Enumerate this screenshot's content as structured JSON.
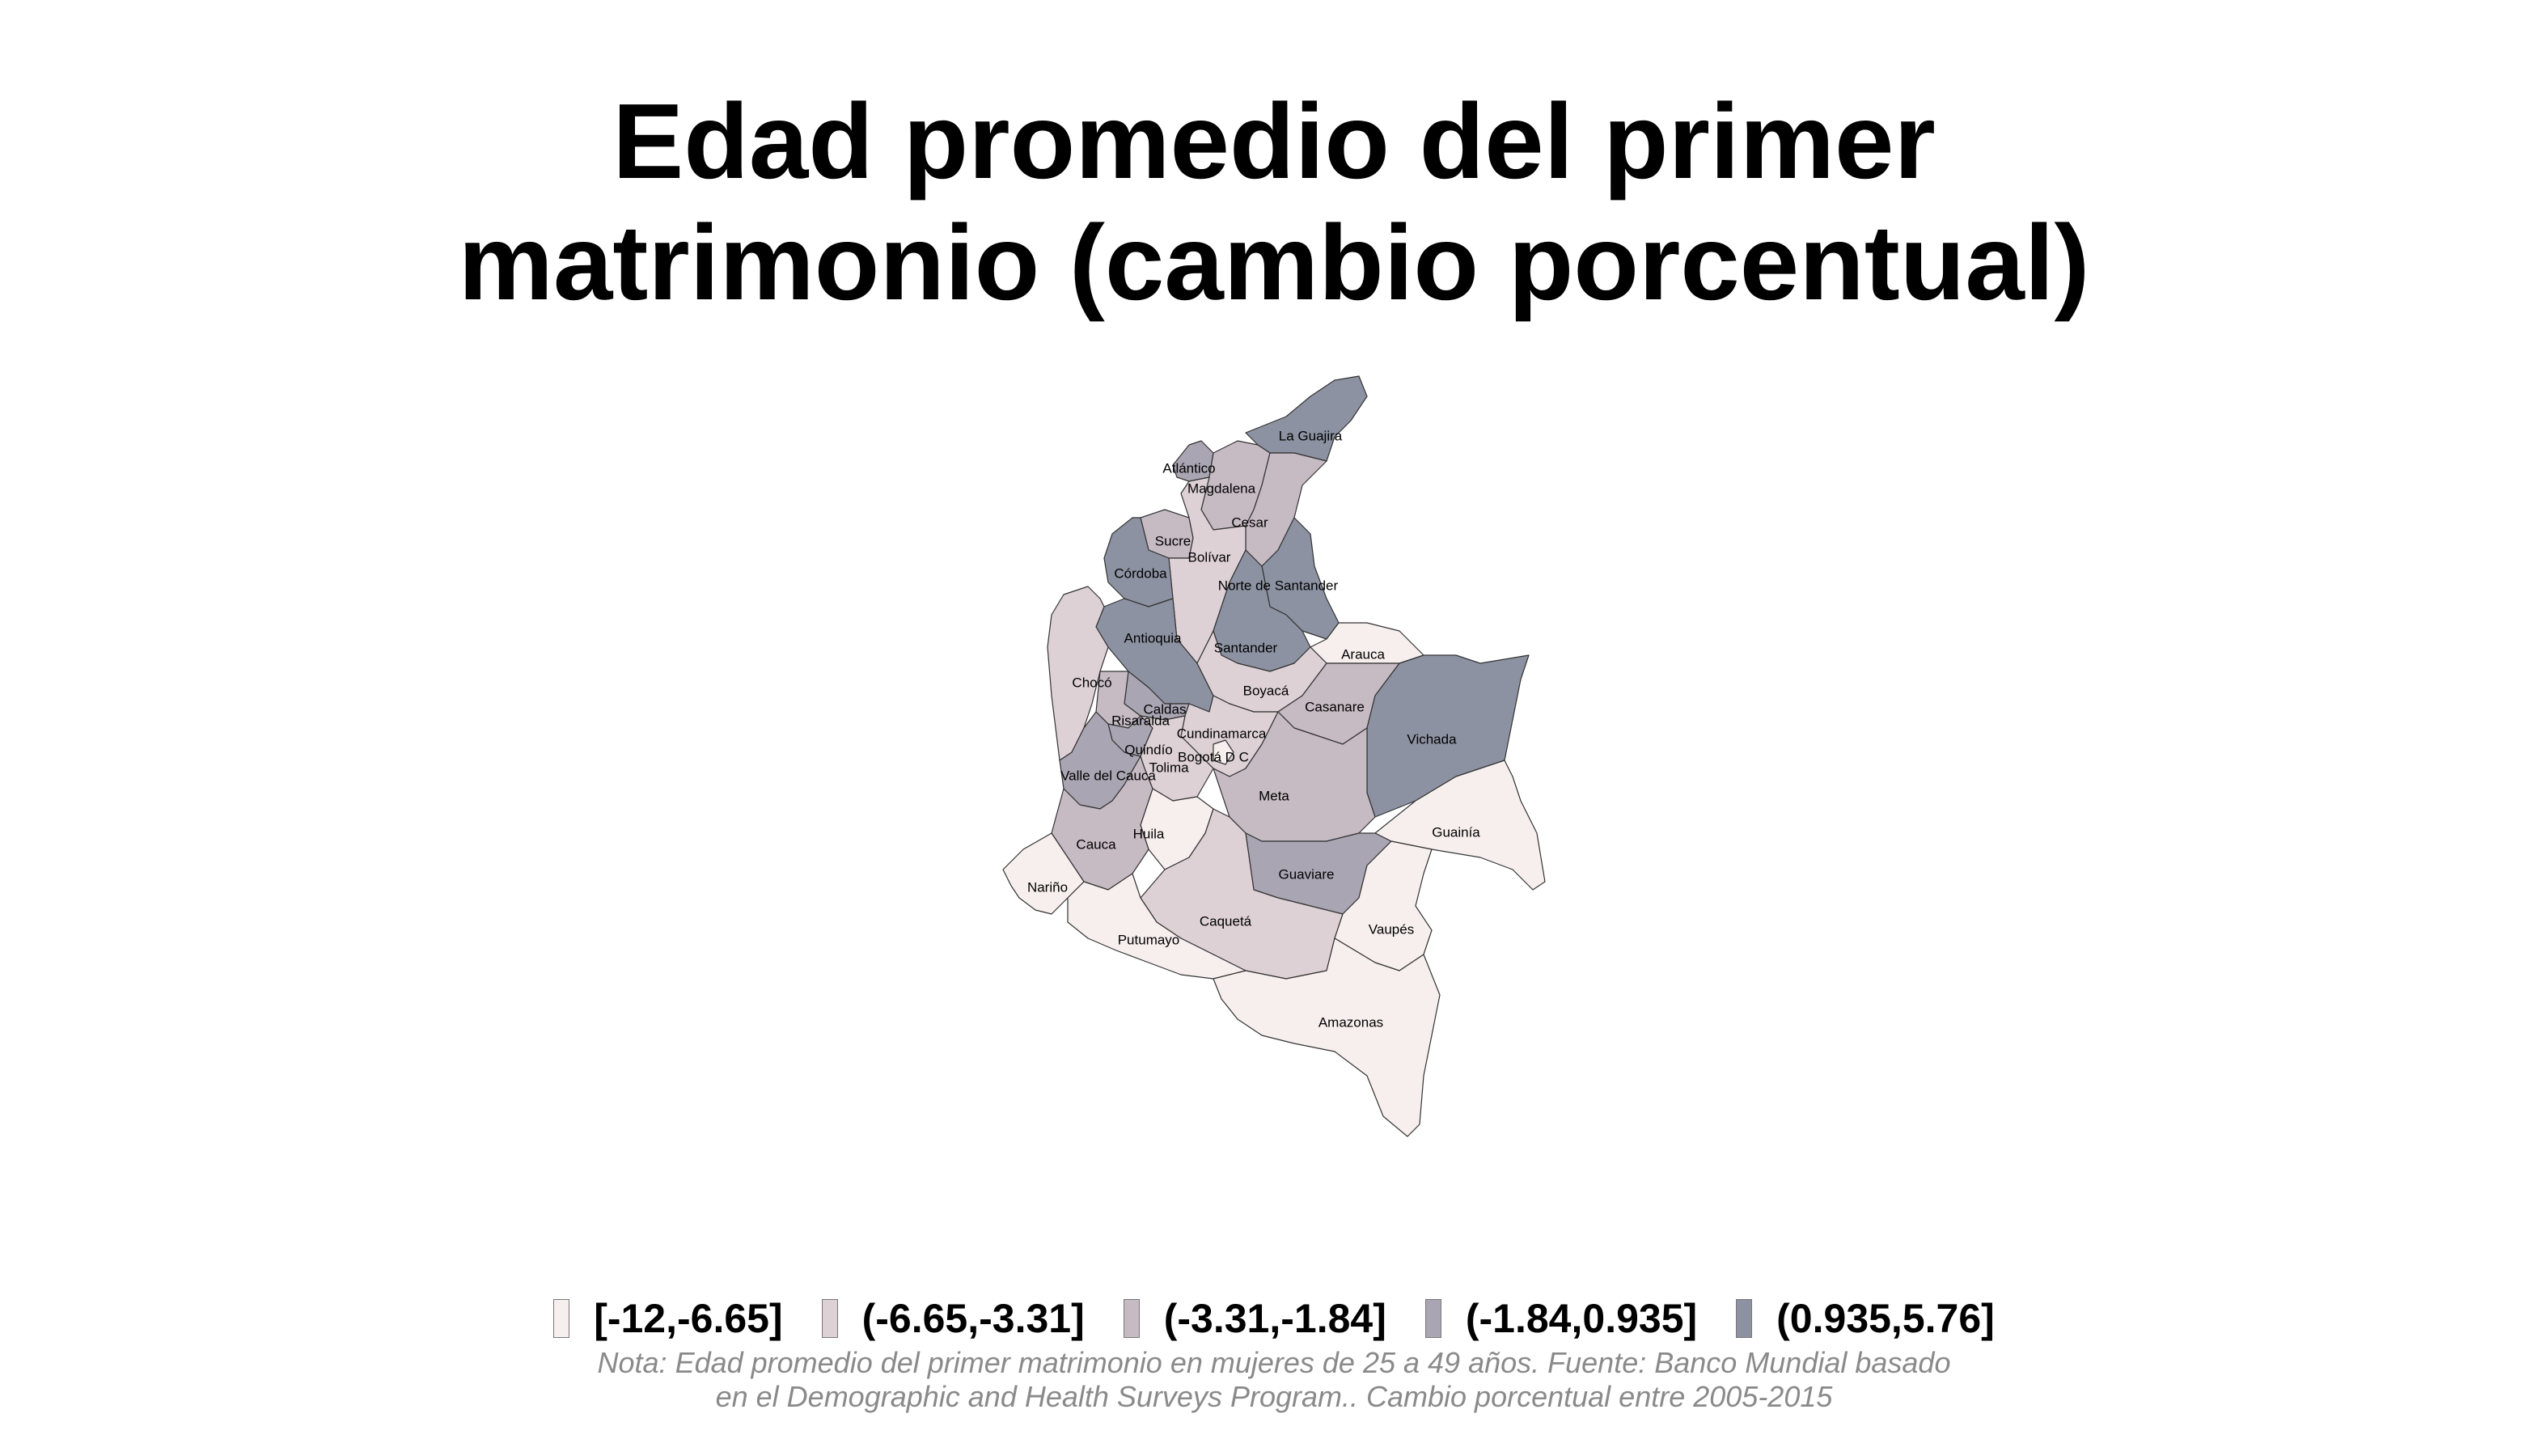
{
  "title": {
    "line1": "Edad promedio del primer",
    "line2": "matrimonio (cambio porcentual)"
  },
  "legend": [
    {
      "label": "[-12,-6.65]",
      "color": "#f7efee"
    },
    {
      "label": "(-6.65,-3.31]",
      "color": "#ddd1d6"
    },
    {
      "label": "(-3.31,-1.84]",
      "color": "#c6bac3"
    },
    {
      "label": "(-1.84,0.935]",
      "color": "#a9a5b2"
    },
    {
      "label": "(0.935,5.76]",
      "color": "#8c92a1"
    }
  ],
  "departments": [
    {
      "name": "La Guajira",
      "class": 4
    },
    {
      "name": "Atlántico",
      "class": 3
    },
    {
      "name": "Magdalena",
      "class": 2
    },
    {
      "name": "Cesar",
      "class": 2
    },
    {
      "name": "Sucre",
      "class": 2
    },
    {
      "name": "Bolívar",
      "class": 1
    },
    {
      "name": "Córdoba",
      "class": 4
    },
    {
      "name": "Norte de Santander",
      "class": 4
    },
    {
      "name": "Antioquia",
      "class": 4
    },
    {
      "name": "Santander",
      "class": 4
    },
    {
      "name": "Arauca",
      "class": 0
    },
    {
      "name": "Chocó",
      "class": 1
    },
    {
      "name": "Boyacá",
      "class": 1
    },
    {
      "name": "Casanare",
      "class": 2
    },
    {
      "name": "Caldas",
      "class": 3
    },
    {
      "name": "Risaralda",
      "class": 2
    },
    {
      "name": "Vichada",
      "class": 4
    },
    {
      "name": "Cundinamarca",
      "class": 1
    },
    {
      "name": "Quindío",
      "class": 3
    },
    {
      "name": "Bogotá D C",
      "class": 0
    },
    {
      "name": "Tolima",
      "class": 1
    },
    {
      "name": "Valle del Cauca",
      "class": 3
    },
    {
      "name": "Meta",
      "class": 2
    },
    {
      "name": "Huila",
      "class": 0
    },
    {
      "name": "Guainía",
      "class": 0
    },
    {
      "name": "Cauca",
      "class": 2
    },
    {
      "name": "Guaviare",
      "class": 3
    },
    {
      "name": "Nariño",
      "class": 0
    },
    {
      "name": "Caquetá",
      "class": 1
    },
    {
      "name": "Vaupés",
      "class": 0
    },
    {
      "name": "Putumayo",
      "class": 0
    },
    {
      "name": "Amazonas",
      "class": 0
    }
  ],
  "note": {
    "line1": "Nota: Edad promedio del primer matrimonio en mujeres de 25 a 49 años. Fuente: Banco Mundial basado",
    "line2": "en el Demographic and Health Surveys Program.. Cambio porcentual entre 2005-2015"
  }
}
